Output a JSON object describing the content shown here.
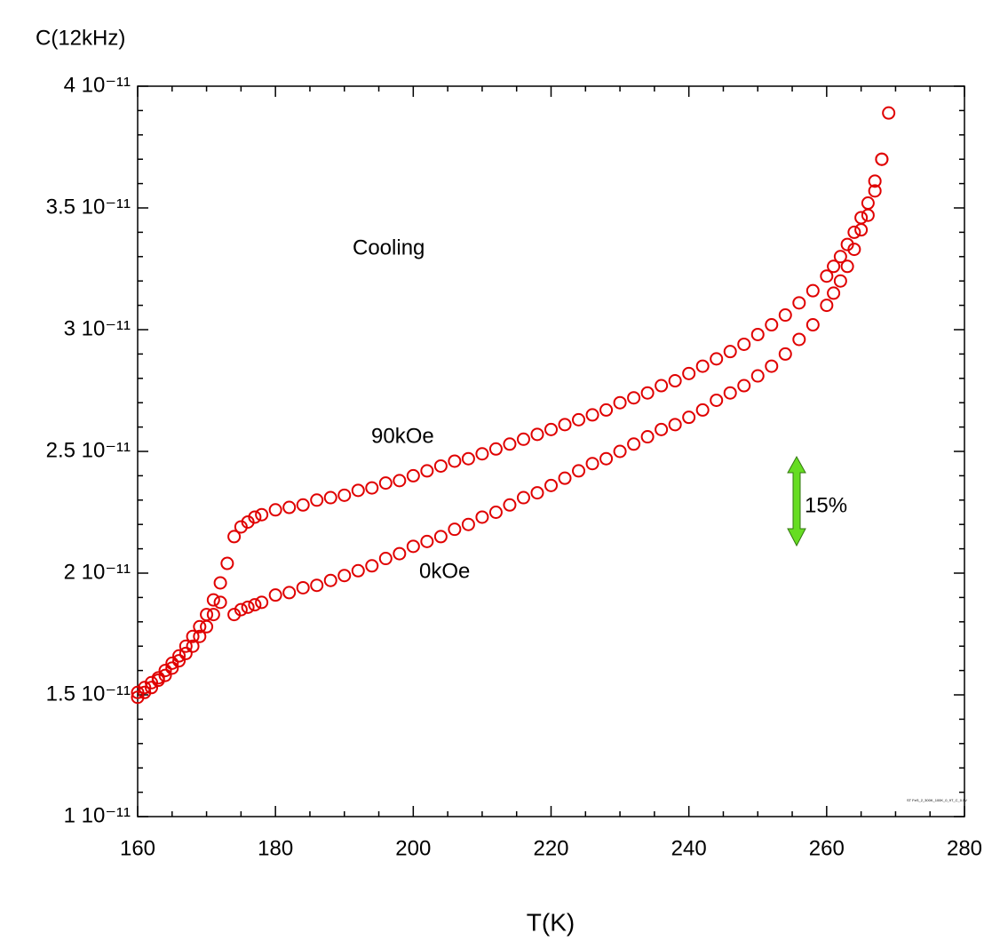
{
  "chart_data": {
    "type": "scatter",
    "ylabel": "C(12kHz)",
    "xlabel": "T(K)",
    "annotations": [
      "Cooling",
      "15%"
    ],
    "file_label": "ST FeS_2_300K_100K_0_9T_C_0.5V",
    "xlim": [
      160,
      280
    ],
    "xticks": [
      160,
      180,
      200,
      220,
      240,
      260,
      280
    ],
    "xminorticks": [
      165,
      170,
      175,
      185,
      190,
      195,
      205,
      210,
      215,
      225,
      230,
      235,
      245,
      250,
      255,
      265,
      270,
      275
    ],
    "ylim": [
      1e-11,
      4e-11
    ],
    "yticks": [
      {
        "value": 1e-11,
        "label": "1 10⁻¹¹"
      },
      {
        "value": 1.5e-11,
        "label": "1.5 10⁻¹¹"
      },
      {
        "value": 2e-11,
        "label": "2 10⁻¹¹"
      },
      {
        "value": 2.5e-11,
        "label": "2.5 10⁻¹¹"
      },
      {
        "value": 3e-11,
        "label": "3 10⁻¹¹"
      },
      {
        "value": 3.5e-11,
        "label": "3.5 10⁻¹¹"
      },
      {
        "value": 4e-11,
        "label": "4 10⁻¹¹"
      }
    ],
    "yminorticks": [
      1.1e-11,
      1.2e-11,
      1.3e-11,
      1.4e-11,
      1.6e-11,
      1.7e-11,
      1.8e-11,
      1.9e-11,
      2.1e-11,
      2.2e-11,
      2.3e-11,
      2.4e-11,
      2.6e-11,
      2.7e-11,
      2.8e-11,
      2.9e-11,
      3.1e-11,
      3.2e-11,
      3.3e-11,
      3.4e-11,
      3.6e-11,
      3.7e-11,
      3.8e-11,
      3.9e-11
    ],
    "series": [
      {
        "name": "90kOe",
        "color": "#e00000",
        "x": [
          160,
          161,
          162,
          163,
          164,
          165,
          166,
          167,
          168,
          169,
          170,
          171,
          172,
          173,
          174,
          175,
          176,
          177,
          178,
          180,
          182,
          184,
          186,
          188,
          190,
          192,
          194,
          196,
          198,
          200,
          202,
          204,
          206,
          208,
          210,
          212,
          214,
          216,
          218,
          220,
          222,
          224,
          226,
          228,
          230,
          232,
          234,
          236,
          238,
          240,
          242,
          244,
          246,
          248,
          250,
          252,
          254,
          256,
          258,
          260,
          261,
          262,
          263,
          264,
          265,
          266,
          267,
          268,
          269
        ],
        "values": [
          1.51e-11,
          1.53e-11,
          1.55e-11,
          1.57e-11,
          1.6e-11,
          1.63e-11,
          1.66e-11,
          1.7e-11,
          1.74e-11,
          1.78e-11,
          1.83e-11,
          1.89e-11,
          1.96e-11,
          2.04e-11,
          2.15e-11,
          2.19e-11,
          2.21e-11,
          2.23e-11,
          2.24e-11,
          2.26e-11,
          2.27e-11,
          2.28e-11,
          2.3e-11,
          2.31e-11,
          2.32e-11,
          2.34e-11,
          2.35e-11,
          2.37e-11,
          2.38e-11,
          2.4e-11,
          2.42e-11,
          2.44e-11,
          2.46e-11,
          2.47e-11,
          2.49e-11,
          2.51e-11,
          2.53e-11,
          2.55e-11,
          2.57e-11,
          2.59e-11,
          2.61e-11,
          2.63e-11,
          2.65e-11,
          2.67e-11,
          2.7e-11,
          2.72e-11,
          2.74e-11,
          2.77e-11,
          2.79e-11,
          2.82e-11,
          2.85e-11,
          2.88e-11,
          2.91e-11,
          2.94e-11,
          2.98e-11,
          3.02e-11,
          3.06e-11,
          3.11e-11,
          3.16e-11,
          3.22e-11,
          3.26e-11,
          3.3e-11,
          3.35e-11,
          3.4e-11,
          3.46e-11,
          3.52e-11,
          3.61e-11,
          3.7e-11,
          3.89e-11
        ]
      },
      {
        "name": "0kOe",
        "color": "#e00000",
        "x": [
          160,
          161,
          162,
          163,
          164,
          165,
          166,
          167,
          168,
          169,
          170,
          171,
          172,
          174,
          175,
          176,
          177,
          178,
          180,
          182,
          184,
          186,
          188,
          190,
          192,
          194,
          196,
          198,
          200,
          202,
          204,
          206,
          208,
          210,
          212,
          214,
          216,
          218,
          220,
          222,
          224,
          226,
          228,
          230,
          232,
          234,
          236,
          238,
          240,
          242,
          244,
          246,
          248,
          250,
          252,
          254,
          256,
          258,
          260,
          261,
          262,
          263,
          264,
          265,
          266,
          267,
          268
        ],
        "values": [
          1.49e-11,
          1.51e-11,
          1.53e-11,
          1.56e-11,
          1.58e-11,
          1.61e-11,
          1.64e-11,
          1.67e-11,
          1.7e-11,
          1.74e-11,
          1.78e-11,
          1.83e-11,
          1.88e-11,
          1.83e-11,
          1.85e-11,
          1.86e-11,
          1.87e-11,
          1.88e-11,
          1.91e-11,
          1.92e-11,
          1.94e-11,
          1.95e-11,
          1.97e-11,
          1.99e-11,
          2.01e-11,
          2.03e-11,
          2.06e-11,
          2.08e-11,
          2.11e-11,
          2.13e-11,
          2.15e-11,
          2.18e-11,
          2.2e-11,
          2.23e-11,
          2.25e-11,
          2.28e-11,
          2.31e-11,
          2.33e-11,
          2.36e-11,
          2.39e-11,
          2.42e-11,
          2.45e-11,
          2.47e-11,
          2.5e-11,
          2.53e-11,
          2.56e-11,
          2.59e-11,
          2.61e-11,
          2.64e-11,
          2.67e-11,
          2.71e-11,
          2.74e-11,
          2.77e-11,
          2.81e-11,
          2.85e-11,
          2.9e-11,
          2.96e-11,
          3.02e-11,
          3.1e-11,
          3.15e-11,
          3.2e-11,
          3.26e-11,
          3.33e-11,
          3.41e-11,
          3.47e-11,
          3.57e-11,
          3.7e-11
        ]
      }
    ]
  }
}
